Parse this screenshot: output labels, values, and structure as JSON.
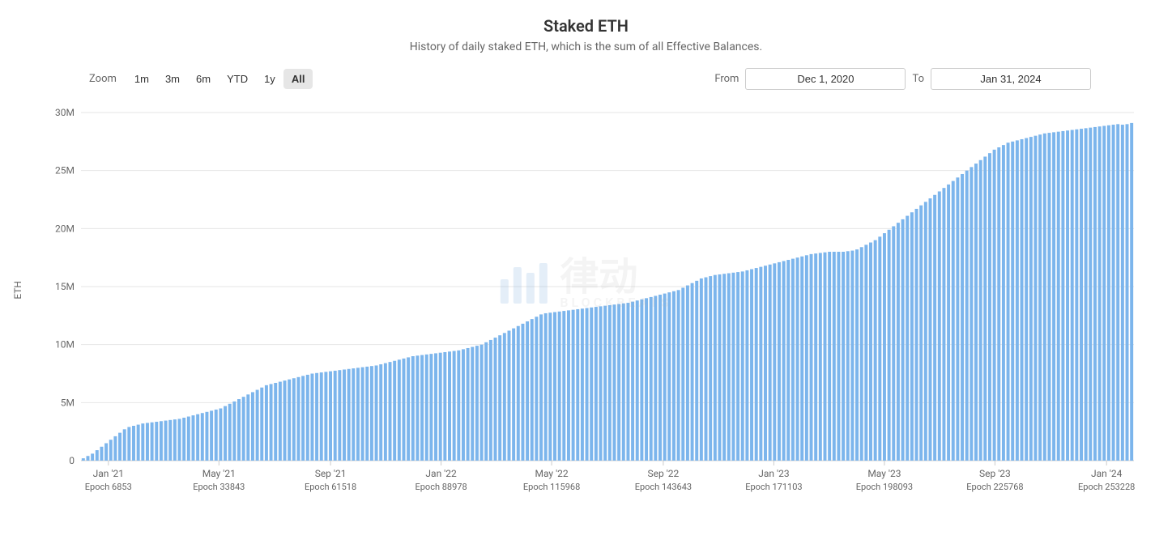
{
  "chart": {
    "type": "bar",
    "title": "Staked ETH",
    "subtitle": "History of daily staked ETH, which is the sum of all Effective Balances.",
    "title_fontsize": 20,
    "subtitle_fontsize": 14,
    "title_color": "#333333",
    "subtitle_color": "#666666",
    "background_color": "#ffffff",
    "bar_color": "#7cb5ec",
    "grid_color": "#e6e6e6",
    "axis_color": "#cccccc",
    "label_color": "#666666",
    "label_fontsize": 12,
    "y_axis": {
      "title": "ETH",
      "min": 0,
      "max": 30000000,
      "ticks": [
        0,
        5000000,
        10000000,
        15000000,
        20000000,
        25000000,
        30000000
      ],
      "tick_labels": [
        "0",
        "5M",
        "10M",
        "15M",
        "20M",
        "25M",
        "30M"
      ]
    },
    "x_axis": {
      "ticks": [
        {
          "month": "Jan '21",
          "epoch": "Epoch 6853",
          "pos": 0.026
        },
        {
          "month": "May '21",
          "epoch": "Epoch 33843",
          "pos": 0.131
        },
        {
          "month": "Sep '21",
          "epoch": "Epoch 61518",
          "pos": 0.237
        },
        {
          "month": "Jan '22",
          "epoch": "Epoch 88978",
          "pos": 0.342
        },
        {
          "month": "May '22",
          "epoch": "Epoch 115968",
          "pos": 0.447
        },
        {
          "month": "Sep '22",
          "epoch": "Epoch 143643",
          "pos": 0.553
        },
        {
          "month": "Jan '23",
          "epoch": "Epoch 171103",
          "pos": 0.658
        },
        {
          "month": "May '23",
          "epoch": "Epoch 198093",
          "pos": 0.763
        },
        {
          "month": "Sep '23",
          "epoch": "Epoch 225768",
          "pos": 0.868
        },
        {
          "month": "Jan '24",
          "epoch": "Epoch 253228",
          "pos": 0.974
        }
      ]
    },
    "controls": {
      "zoom_label": "Zoom",
      "zoom_options": [
        {
          "label": "1m",
          "active": false
        },
        {
          "label": "3m",
          "active": false
        },
        {
          "label": "6m",
          "active": false
        },
        {
          "label": "YTD",
          "active": false
        },
        {
          "label": "1y",
          "active": false
        },
        {
          "label": "All",
          "active": true
        }
      ],
      "from_label": "From",
      "to_label": "To",
      "from_date": "Dec 1, 2020",
      "to_date": "Jan 31, 2024"
    },
    "data": [
      0.2,
      0.4,
      0.6,
      0.9,
      1.2,
      1.5,
      1.8,
      2.1,
      2.4,
      2.7,
      2.9,
      3.0,
      3.1,
      3.2,
      3.25,
      3.3,
      3.35,
      3.4,
      3.45,
      3.5,
      3.55,
      3.6,
      3.7,
      3.8,
      3.9,
      4.0,
      4.1,
      4.2,
      4.3,
      4.4,
      4.5,
      4.7,
      4.9,
      5.1,
      5.3,
      5.5,
      5.7,
      5.9,
      6.1,
      6.3,
      6.5,
      6.6,
      6.7,
      6.8,
      6.9,
      7.0,
      7.1,
      7.2,
      7.3,
      7.4,
      7.5,
      7.55,
      7.6,
      7.65,
      7.7,
      7.75,
      7.8,
      7.85,
      7.9,
      7.95,
      8.0,
      8.05,
      8.1,
      8.15,
      8.2,
      8.3,
      8.4,
      8.5,
      8.6,
      8.7,
      8.8,
      8.9,
      9.0,
      9.05,
      9.1,
      9.15,
      9.2,
      9.25,
      9.3,
      9.35,
      9.4,
      9.45,
      9.5,
      9.6,
      9.7,
      9.8,
      9.9,
      10.0,
      10.2,
      10.4,
      10.6,
      10.8,
      11.0,
      11.2,
      11.4,
      11.6,
      11.8,
      12.0,
      12.2,
      12.4,
      12.6,
      12.7,
      12.75,
      12.8,
      12.85,
      12.9,
      12.95,
      13.0,
      13.05,
      13.1,
      13.15,
      13.2,
      13.25,
      13.3,
      13.35,
      13.4,
      13.45,
      13.5,
      13.55,
      13.6,
      13.7,
      13.8,
      13.9,
      14.0,
      14.1,
      14.2,
      14.3,
      14.4,
      14.5,
      14.6,
      14.7,
      14.9,
      15.1,
      15.3,
      15.5,
      15.7,
      15.8,
      15.9,
      16.0,
      16.05,
      16.1,
      16.15,
      16.2,
      16.25,
      16.3,
      16.4,
      16.5,
      16.6,
      16.7,
      16.8,
      16.9,
      17.0,
      17.1,
      17.2,
      17.3,
      17.4,
      17.5,
      17.6,
      17.7,
      17.8,
      17.85,
      17.9,
      17.95,
      18.0,
      18.0,
      18.0,
      18.0,
      18.05,
      18.1,
      18.2,
      18.4,
      18.6,
      18.8,
      19.0,
      19.3,
      19.6,
      19.9,
      20.2,
      20.5,
      20.8,
      21.1,
      21.4,
      21.7,
      22.0,
      22.3,
      22.6,
      22.9,
      23.2,
      23.5,
      23.8,
      24.1,
      24.4,
      24.7,
      25.0,
      25.3,
      25.6,
      25.9,
      26.2,
      26.5,
      26.8,
      27.0,
      27.2,
      27.4,
      27.5,
      27.6,
      27.7,
      27.8,
      27.9,
      28.0,
      28.1,
      28.2,
      28.25,
      28.3,
      28.35,
      28.4,
      28.45,
      28.5,
      28.55,
      28.6,
      28.65,
      28.7,
      28.75,
      28.8,
      28.85,
      28.9,
      28.95,
      29.0,
      28.95,
      29.0,
      29.1
    ],
    "watermark": {
      "main": "律动",
      "sub": "BLOCKBEATS"
    }
  }
}
